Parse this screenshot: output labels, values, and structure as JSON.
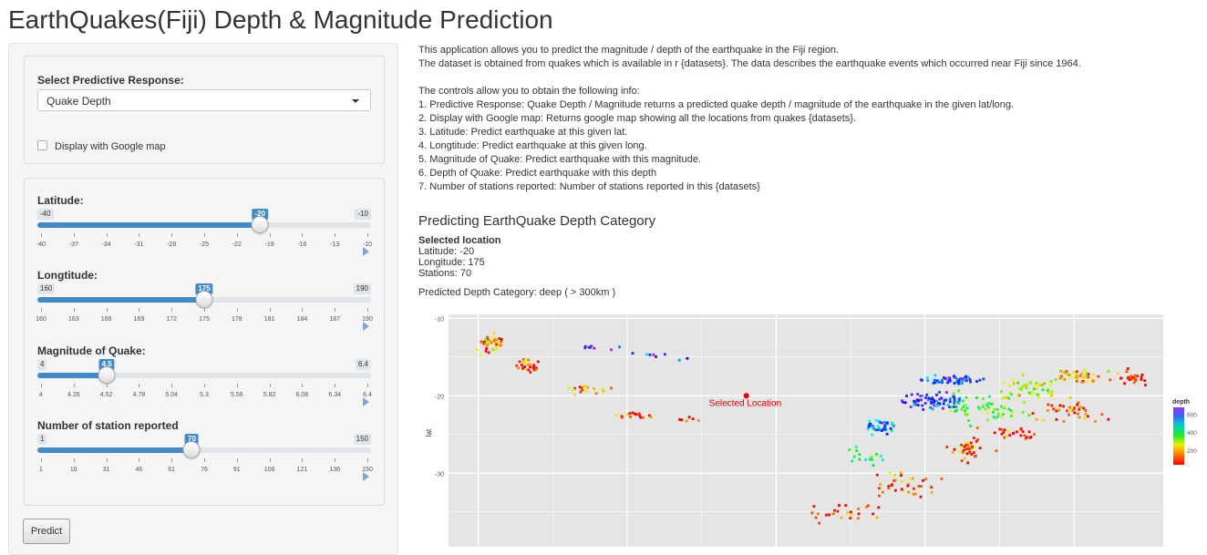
{
  "title": "EarthQuakes(Fiji) Depth & Magnitude Prediction",
  "sidebar": {
    "response_label": "Select Predictive Response:",
    "response_value": "Quake Depth",
    "map_checkbox_label": "Display with Google map",
    "predict_label": "Predict",
    "sliders": {
      "lat": {
        "label": "Latitude:",
        "min": "-40",
        "max": "-10",
        "value": "-20",
        "fraction": 0.667,
        "ticks": [
          "-40",
          "-37",
          "-34",
          "-31",
          "-28",
          "-25",
          "-22",
          "-19",
          "-16",
          "-13",
          "-10"
        ]
      },
      "long": {
        "label": "Longtitude:",
        "min": "160",
        "max": "190",
        "value": "175",
        "fraction": 0.5,
        "ticks": [
          "160",
          "163",
          "166",
          "169",
          "172",
          "175",
          "178",
          "181",
          "184",
          "187",
          "190"
        ]
      },
      "mag": {
        "label": "Magnitude of Quake:",
        "min": "4",
        "max": "6.4",
        "value": "4.5",
        "fraction": 0.208,
        "ticks": [
          "4",
          "4.26",
          "4.52",
          "4.78",
          "5.04",
          "5.3",
          "5.56",
          "5.82",
          "6.08",
          "6.34",
          "6.4"
        ]
      },
      "stations": {
        "label": "Number of station reported",
        "min": "1",
        "max": "150",
        "value": "70",
        "fraction": 0.463,
        "ticks": [
          "1",
          "16",
          "31",
          "46",
          "61",
          "76",
          "91",
          "106",
          "121",
          "136",
          "150"
        ]
      }
    }
  },
  "main": {
    "intro_lines": [
      "This application allows you to predict the magnitude / depth of the earthquake in the Fiji region.",
      "The dataset is obtained from quakes which is available in r {datasets}. The data describes the earthquake events which occurred near Fiji since 1964."
    ],
    "controls_intro": "The controls allow you to obtain the following info:",
    "controls": [
      "1. Predictive Response: Quake Depth / Magnitude returns a predicted quake depth / magnitude of the earthquake in the given lat/long.",
      "2. Display with Google map: Returns google map showing all the locations from quakes {datasets}.",
      "3. Latitude: Predict earthquake at this given lat.",
      "4. Longtitude: Predict earthquake at this given long.",
      "5. Magnitude of Quake: Predict earthquake with this magnitude.",
      "6. Depth of Quake: Predict earthquake with this depth",
      "7. Number of stations reported: Number of stations reported in this {datasets}"
    ],
    "section_title": "Predicting EarthQuake Depth Category",
    "selected_heading": "Selected location",
    "selected_lat": "Latitude: -20",
    "selected_long": "Longitude: 175",
    "selected_stations": "Stations: 70",
    "predicted_text": "Predicted Depth Category: deep ( > 300km )"
  },
  "chart_data": {
    "type": "scatter",
    "xlabel": "",
    "ylabel": "lat",
    "y_ticks": [
      "-10",
      "-20",
      "-30"
    ],
    "xlim": [
      165,
      189
    ],
    "ylim": [
      -39.5,
      -9.5
    ],
    "legend_title": "depth",
    "legend_ticks": [
      "600",
      "400",
      "200"
    ],
    "legend_placement": "right",
    "annotation": "Selected Location",
    "selected_point": {
      "x": 175,
      "y": -20
    },
    "clusters": [
      {
        "x": 166.4,
        "y": -13.2,
        "sx": 0.55,
        "sy": 1.2,
        "n": 40,
        "depth": 120
      },
      {
        "x": 167.6,
        "y": -16.2,
        "sx": 0.5,
        "sy": 0.9,
        "n": 25,
        "depth": 90
      },
      {
        "x": 169.6,
        "y": -19.2,
        "sx": 0.7,
        "sy": 0.6,
        "n": 20,
        "depth": 150
      },
      {
        "x": 171.3,
        "y": -22.6,
        "sx": 0.9,
        "sy": 0.4,
        "n": 16,
        "depth": 60
      },
      {
        "x": 173.2,
        "y": -23.0,
        "sx": 0.5,
        "sy": 0.3,
        "n": 6,
        "depth": 50
      },
      {
        "x": 170.0,
        "y": -13.8,
        "sx": 0.6,
        "sy": 0.4,
        "n": 8,
        "depth": 590
      },
      {
        "x": 172.0,
        "y": -15.0,
        "sx": 1.0,
        "sy": 0.5,
        "n": 8,
        "depth": 560
      },
      {
        "x": 182.0,
        "y": -18.0,
        "sx": 0.9,
        "sy": 0.5,
        "n": 55,
        "depth": 560
      },
      {
        "x": 181.2,
        "y": -20.8,
        "sx": 1.2,
        "sy": 1.0,
        "n": 70,
        "depth": 570
      },
      {
        "x": 179.5,
        "y": -24.0,
        "sx": 0.55,
        "sy": 0.9,
        "n": 40,
        "depth": 520
      },
      {
        "x": 183.0,
        "y": -21.5,
        "sx": 1.3,
        "sy": 2.0,
        "n": 60,
        "depth": 300
      },
      {
        "x": 184.5,
        "y": -19.0,
        "sx": 1.0,
        "sy": 1.5,
        "n": 45,
        "depth": 230
      },
      {
        "x": 186.3,
        "y": -17.6,
        "sx": 1.1,
        "sy": 0.9,
        "n": 40,
        "depth": 140
      },
      {
        "x": 188.0,
        "y": -17.8,
        "sx": 0.7,
        "sy": 1.0,
        "n": 25,
        "depth": 60
      },
      {
        "x": 185.8,
        "y": -22.0,
        "sx": 1.2,
        "sy": 1.2,
        "n": 40,
        "depth": 90
      },
      {
        "x": 182.5,
        "y": -27.0,
        "sx": 0.9,
        "sy": 1.5,
        "n": 40,
        "depth": 80
      },
      {
        "x": 180.5,
        "y": -31.5,
        "sx": 1.0,
        "sy": 1.5,
        "n": 35,
        "depth": 130
      },
      {
        "x": 178.5,
        "y": -35.0,
        "sx": 1.3,
        "sy": 1.2,
        "n": 25,
        "depth": 50
      },
      {
        "x": 184.0,
        "y": -25.0,
        "sx": 1.0,
        "sy": 1.0,
        "n": 25,
        "depth": 40
      },
      {
        "x": 179.0,
        "y": -28.0,
        "sx": 0.6,
        "sy": 1.5,
        "n": 15,
        "depth": 330
      }
    ]
  }
}
